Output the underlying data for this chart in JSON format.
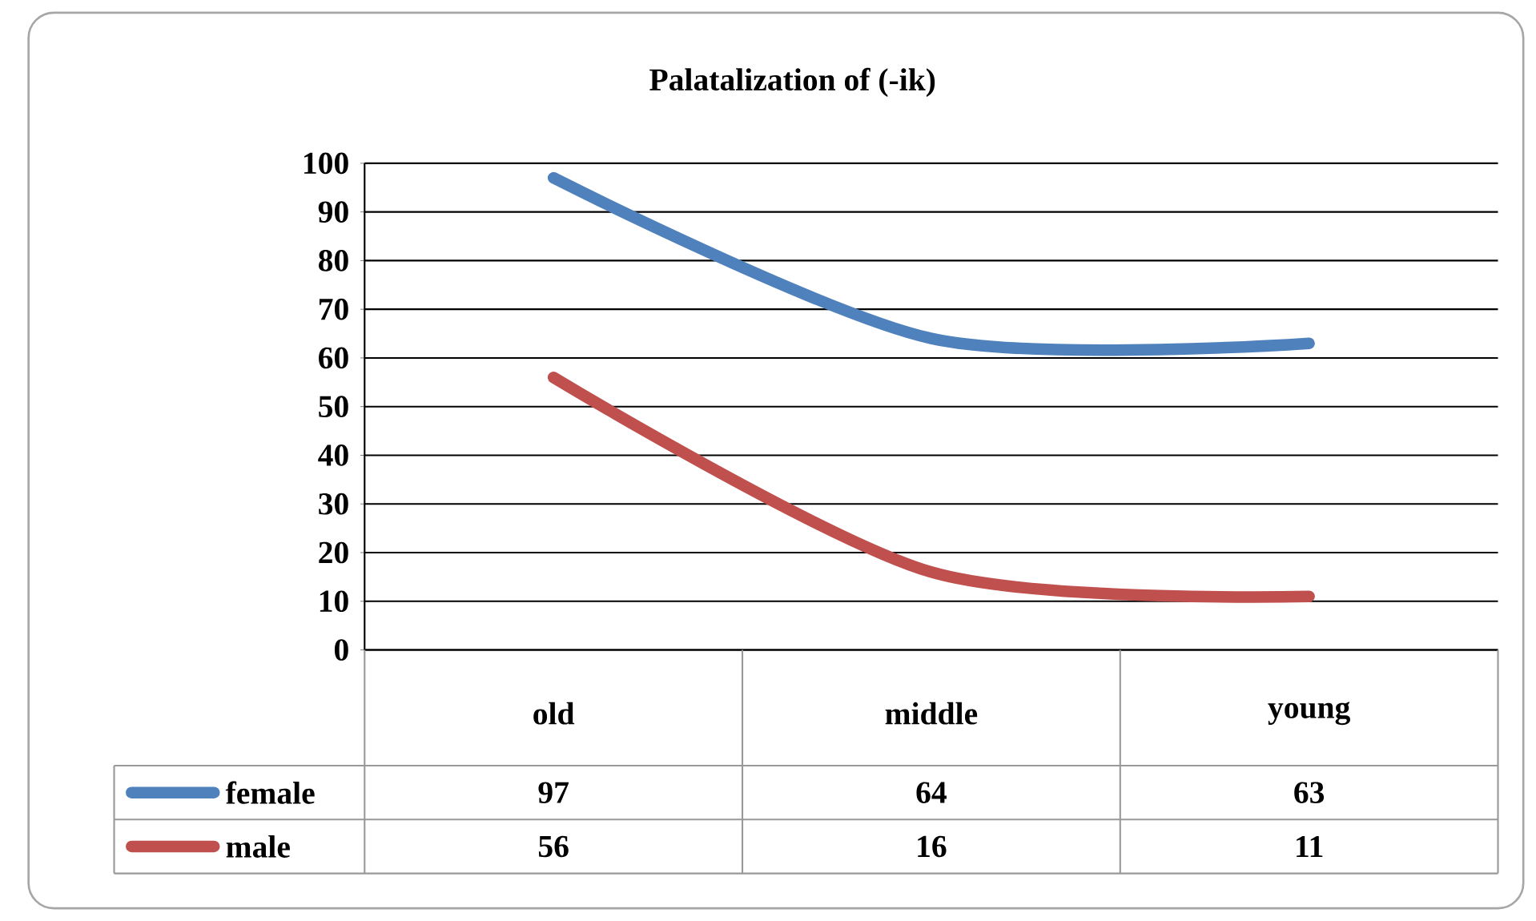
{
  "chart_data": {
    "type": "line",
    "title": "Palatalization of (-ik)",
    "categories": [
      "old",
      "middle",
      "young"
    ],
    "series": [
      {
        "name": "female",
        "color": "#4f81bd",
        "values": [
          97,
          64,
          63
        ]
      },
      {
        "name": "male",
        "color": "#c0504d",
        "values": [
          56,
          16,
          11
        ]
      }
    ],
    "ylim": [
      0,
      100
    ],
    "yticks": [
      0,
      10,
      20,
      30,
      40,
      50,
      60,
      70,
      80,
      90,
      100
    ],
    "grid": "y",
    "legend": "bottom",
    "data_labels": true
  }
}
